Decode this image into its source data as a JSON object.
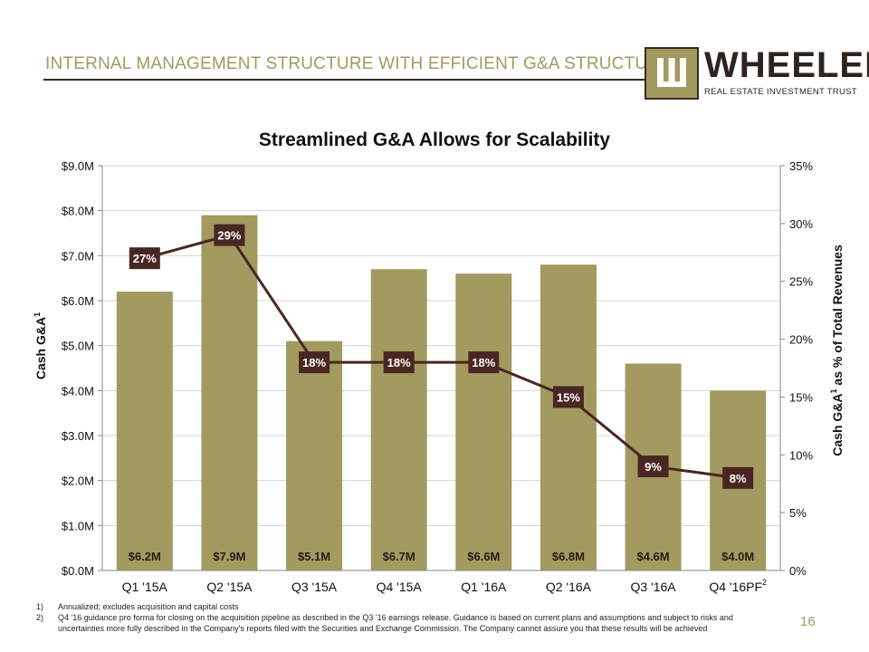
{
  "header": {
    "title": "INTERNAL MANAGEMENT STRUCTURE WITH EFFICIENT G&A STRUCTURE"
  },
  "logo": {
    "wordmark": "WHEELER",
    "subtitle": "REAL ESTATE INVESTMENT TRUST"
  },
  "colors": {
    "bar": "#a29a5f",
    "line": "#4a2623",
    "label_box": "#4a2623",
    "accent": "#a29a5f"
  },
  "chart_data": {
    "type": "bar",
    "title": "Streamlined G&A Allows for Scalability",
    "categories": [
      "Q1 '15A",
      "Q2 '15A",
      "Q3 '15A",
      "Q4 '15A",
      "Q1 '16A",
      "Q2 '16A",
      "Q3 '16A",
      "Q4 '16PF"
    ],
    "category_superscripts": [
      "",
      "",
      "",
      "",
      "",
      "",
      "",
      "2"
    ],
    "ylabel": "Cash G&A",
    "ylabel_superscript": "1",
    "y2label": "Cash G&A",
    "y2label_superscript": "1",
    "y2label_suffix": " as % of Total Revenues",
    "ylim": [
      0,
      9
    ],
    "yticks": [
      "$0.0M",
      "$1.0M",
      "$2.0M",
      "$3.0M",
      "$4.0M",
      "$5.0M",
      "$6.0M",
      "$7.0M",
      "$8.0M",
      "$9.0M"
    ],
    "y2lim": [
      0,
      35
    ],
    "y2ticks": [
      "0%",
      "5%",
      "10%",
      "15%",
      "20%",
      "25%",
      "30%",
      "35%"
    ],
    "series": [
      {
        "name": "Cash G&A ($M)",
        "kind": "bar",
        "values": [
          6.2,
          7.9,
          5.1,
          6.7,
          6.6,
          6.8,
          4.6,
          4.0
        ],
        "labels": [
          "$6.2M",
          "$7.9M",
          "$5.1M",
          "$6.7M",
          "$6.6M",
          "$6.8M",
          "$4.6M",
          "$4.0M"
        ]
      },
      {
        "name": "Cash G&A as % of Total Revenues",
        "kind": "line",
        "axis": "right",
        "values": [
          27,
          29,
          18,
          18,
          18,
          15,
          9,
          8
        ],
        "labels": [
          "27%",
          "29%",
          "18%",
          "18%",
          "18%",
          "15%",
          "9%",
          "8%"
        ]
      }
    ]
  },
  "footnotes": [
    {
      "num": "1)",
      "text": "Annualized; excludes acquisition and capital costs"
    },
    {
      "num": "2)",
      "text": "Q4 '16 guidance pro forma for closing on the acquisition pipeline as described in the Q3 '16 earnings release. Guidance is based on current plans and assumptions and subject to risks and uncertainties more fully described in the Company's reports filed with the Securities and Exchange Commission. The Company cannot assure you that these results will be achieved"
    }
  ],
  "page_number": "16"
}
